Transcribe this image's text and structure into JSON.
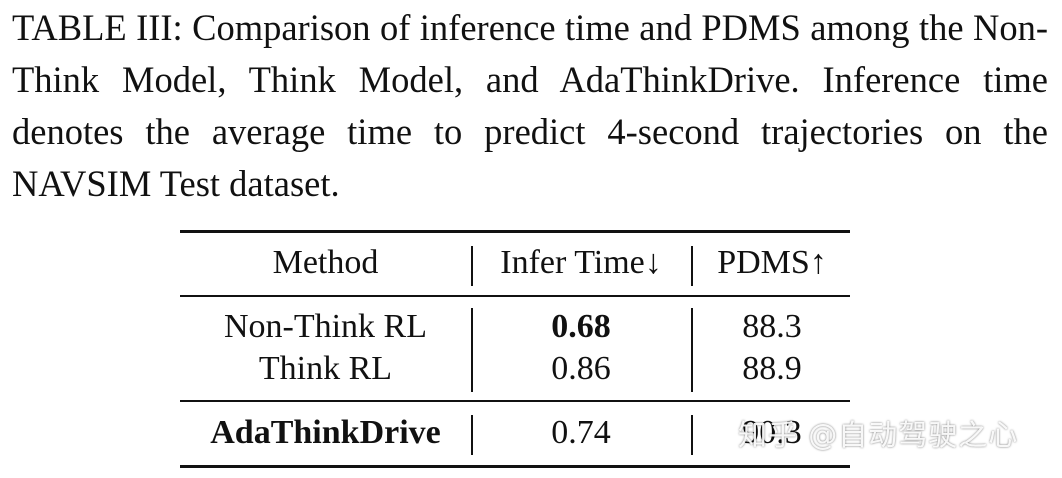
{
  "caption": "TABLE III: Comparison of inference time and PDMS among the Non-Think Model, Think Model, and AdaThinkDrive. Inference time denotes the average time to predict 4-second trajectories on the NAVSIM Test dataset.",
  "table": {
    "headers": [
      "Method",
      "Infer Time↓",
      "PDMS↑"
    ],
    "rows": [
      {
        "method": "Non-Think RL",
        "infer_time": "0.68",
        "pdms": "88.3",
        "infer_bold": true
      },
      {
        "method": "Think RL",
        "infer_time": "0.86",
        "pdms": "88.9"
      },
      {
        "method": "AdaThinkDrive",
        "infer_time": "0.74",
        "pdms": "90.3",
        "method_bold": true
      }
    ]
  },
  "watermark": "知乎 @自动驾驶之心"
}
